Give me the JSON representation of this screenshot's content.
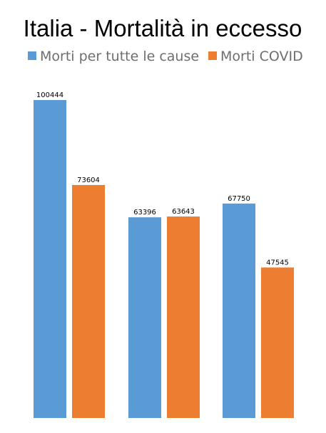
{
  "chart_data": {
    "type": "bar",
    "title": "Italia - Mortalità in eccesso",
    "categories": [
      "",
      "",
      ""
    ],
    "series": [
      {
        "name": "Morti per tutte le cause",
        "color": "#5b9bd5",
        "values": [
          100444,
          63396,
          67750
        ]
      },
      {
        "name": "Morti COVID",
        "color": "#ed7d31",
        "values": [
          73604,
          63643,
          47545
        ]
      }
    ],
    "ylim": [
      0,
      110000
    ],
    "grid": false,
    "legend_position": "top-center",
    "data_labels": true
  }
}
